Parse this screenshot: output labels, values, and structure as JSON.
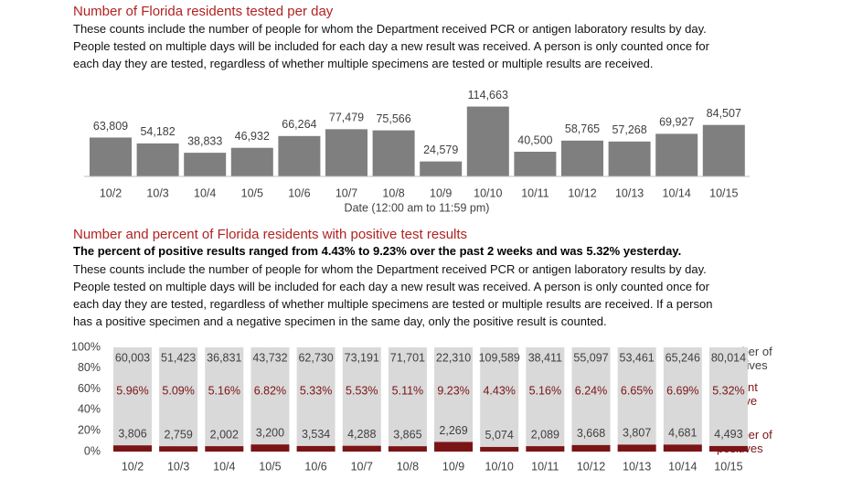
{
  "chart_data": [
    {
      "type": "bar",
      "title": "Number of Florida residents tested per day",
      "text": "These counts include the number of people for whom the Department received PCR or antigen laboratory results by day. People tested on multiple days will be included for each day a new result was received. A person is only counted once for each day they are tested, regardless of whether multiple specimens are tested or multiple results are received.",
      "categories": [
        "10/2",
        "10/3",
        "10/4",
        "10/5",
        "10/6",
        "10/7",
        "10/8",
        "10/9",
        "10/10",
        "10/11",
        "10/12",
        "10/13",
        "10/14",
        "10/15"
      ],
      "values": [
        63809,
        54182,
        38833,
        46932,
        66264,
        77479,
        75566,
        24579,
        114663,
        40500,
        58765,
        57268,
        69927,
        84507
      ],
      "value_labels": [
        "63,809",
        "54,182",
        "38,833",
        "46,932",
        "66,264",
        "77,479",
        "75,566",
        "24,579",
        "114,663",
        "40,500",
        "58,765",
        "57,268",
        "69,927",
        "84,507"
      ],
      "color": "#7f7f7f",
      "ylim": [
        0,
        150000
      ],
      "xlabel": "Date (12:00 am to 11:59 pm)"
    },
    {
      "type": "stacked_percent",
      "title": "Number and percent of Florida residents with positive test results",
      "subtitle": "The percent of positive results ranged from 4.43% to 9.23% over the past 2 weeks and was 5.32% yesterday.",
      "text": "These counts include the number of people for whom the Department received PCR or antigen laboratory results by day. People tested on multiple days will be included for each day a new result was received. A person is only counted once for each day they are tested, regardless of whether multiple specimens are tested or multiple results are received. If a person has a positive specimen and a negative specimen in the same day, only the positive result is counted.",
      "categories": [
        "10/2",
        "10/3",
        "10/4",
        "10/5",
        "10/6",
        "10/7",
        "10/8",
        "10/9",
        "10/10",
        "10/11",
        "10/12",
        "10/13",
        "10/14",
        "10/15"
      ],
      "series": [
        {
          "name": "Number of negatives",
          "color": "#d9d9d9",
          "values": [
            60003,
            51423,
            36831,
            43732,
            62730,
            73191,
            71701,
            22310,
            109589,
            38411,
            55097,
            53461,
            65246,
            80014
          ],
          "value_labels": [
            "60,003",
            "51,423",
            "36,831",
            "43,732",
            "62,730",
            "73,191",
            "71,701",
            "22,310",
            "109,589",
            "38,411",
            "55,097",
            "53,461",
            "65,246",
            "80,014"
          ]
        },
        {
          "name": "Percent positive",
          "color": "#7b1416",
          "values": [
            5.96,
            5.09,
            5.16,
            6.82,
            5.33,
            5.53,
            5.11,
            9.23,
            4.43,
            5.16,
            6.24,
            6.65,
            6.69,
            5.32
          ],
          "value_labels": [
            "5.96%",
            "5.09%",
            "5.16%",
            "6.82%",
            "5.33%",
            "5.53%",
            "5.11%",
            "9.23%",
            "4.43%",
            "5.16%",
            "6.24%",
            "6.65%",
            "6.69%",
            "5.32%"
          ]
        },
        {
          "name": "Number of positives",
          "color": "#7b1416",
          "values": [
            3806,
            2759,
            2002,
            3200,
            3534,
            4288,
            3865,
            2269,
            5074,
            2089,
            3668,
            3807,
            4681,
            4493
          ],
          "value_labels": [
            "3,806",
            "2,759",
            "2,002",
            "3,200",
            "3,534",
            "4,288",
            "3,865",
            "2,269",
            "5,074",
            "2,089",
            "3,668",
            "3,807",
            "4,681",
            "4,493"
          ]
        }
      ],
      "ylim": [
        0,
        100
      ],
      "yticks": [
        {
          "value": 0,
          "label": "0%"
        },
        {
          "value": 20,
          "label": "20%"
        },
        {
          "value": 40,
          "label": "40%"
        },
        {
          "value": 60,
          "label": "60%"
        },
        {
          "value": 80,
          "label": "80%"
        },
        {
          "value": 100,
          "label": "100%"
        }
      ]
    }
  ]
}
